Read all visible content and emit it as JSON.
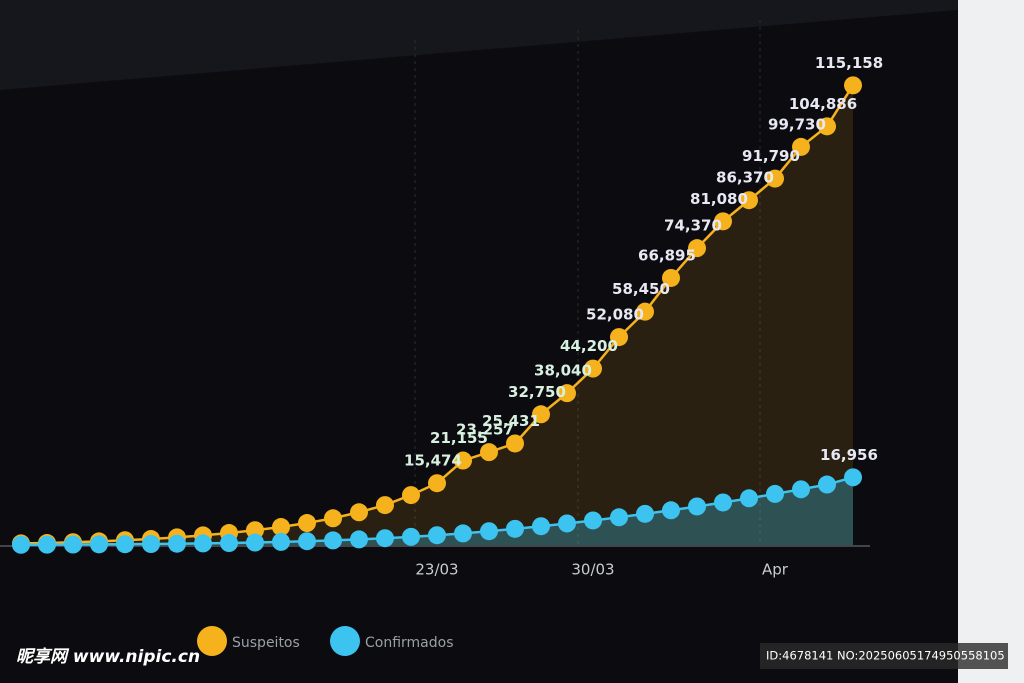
{
  "chart_data": {
    "type": "line",
    "categories": [
      null,
      null,
      null,
      null,
      null,
      null,
      null,
      null,
      null,
      null,
      null,
      null,
      null,
      null,
      null,
      null,
      "23/03",
      null,
      null,
      null,
      null,
      null,
      "30/03",
      null,
      null,
      null,
      null,
      null,
      null,
      "Apr",
      null,
      null,
      null
    ],
    "ylim": [
      0,
      120000
    ],
    "series": [
      {
        "name": "Suspeitos",
        "color": "#f5b21c",
        "values": [
          400,
          500,
          700,
          900,
          1200,
          1500,
          1900,
          2400,
          3000,
          3700,
          4500,
          5500,
          6700,
          8200,
          10000,
          12500,
          15474,
          21155,
          23257,
          25431,
          32750,
          38040,
          44200,
          52080,
          58450,
          66895,
          74370,
          81080,
          86370,
          91790,
          99730,
          104886,
          115158
        ],
        "value_labels": [
          null,
          null,
          null,
          null,
          null,
          null,
          null,
          null,
          null,
          null,
          null,
          null,
          null,
          null,
          null,
          null,
          "15,474",
          "21,155",
          "23,257",
          "25,431",
          "32,750",
          "38,040",
          "44,200",
          "52,080",
          "58,450",
          "66,895",
          "74,370",
          "81,080",
          "86,370",
          "91,790",
          "99,730",
          "104,886",
          "115,158"
        ]
      },
      {
        "name": "Confirmados",
        "color": "#3cc3f0",
        "values": [
          50,
          80,
          120,
          160,
          200,
          250,
          320,
          400,
          500,
          620,
          780,
          950,
          1150,
          1400,
          1700,
          2050,
          2450,
          2900,
          3450,
          4050,
          4700,
          5400,
          6150,
          6950,
          7800,
          8700,
          9650,
          10650,
          11700,
          12800,
          13950,
          15150,
          16956
        ],
        "value_labels": [
          null,
          null,
          null,
          null,
          null,
          null,
          null,
          null,
          null,
          null,
          null,
          null,
          null,
          null,
          null,
          null,
          null,
          null,
          null,
          null,
          null,
          null,
          null,
          null,
          null,
          null,
          null,
          null,
          null,
          null,
          null,
          null,
          "16,956"
        ]
      }
    ]
  },
  "watermark": {
    "site": "昵享网 www.nipic.cn",
    "id": "ID:4678141 NO:20250605174950558105"
  }
}
